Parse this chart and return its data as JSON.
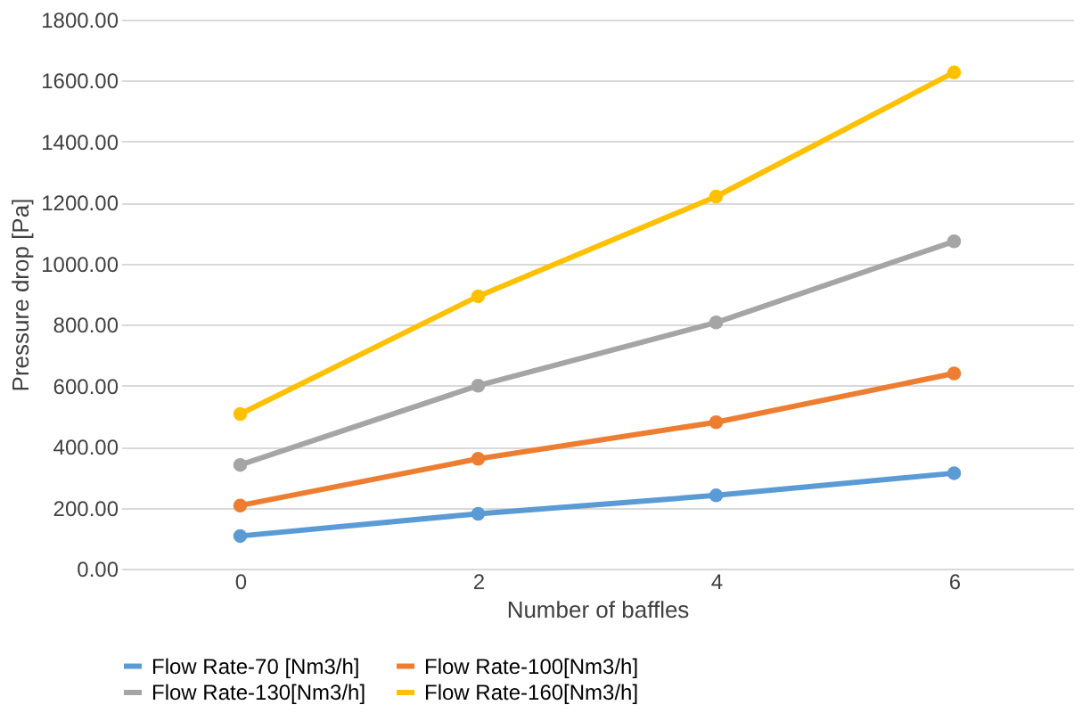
{
  "chart_data": {
    "type": "line",
    "xlabel": "Number of baffles",
    "ylabel": "Pressure drop   [Pa]",
    "categories": [
      "0",
      "2",
      "4",
      "6"
    ],
    "series": [
      {
        "name": "Flow Rate-70  [Nm3/h]",
        "color": "#5b9bd5",
        "values": [
          107,
          180,
          240,
          313
        ]
      },
      {
        "name": "Flow Rate-100[Nm3/h]",
        "color": "#ed7d31",
        "values": [
          207,
          360,
          480,
          640
        ]
      },
      {
        "name": "Flow Rate-130[Nm3/h]",
        "color": "#a5a5a5",
        "values": [
          340,
          600,
          807,
          1073
        ]
      },
      {
        "name": "Flow Rate-160[Nm3/h]",
        "color": "#ffc000",
        "values": [
          507,
          893,
          1220,
          1627
        ]
      }
    ],
    "ylim": [
      0,
      1800
    ],
    "yticks": [
      {
        "value": 0,
        "label": "0.00"
      },
      {
        "value": 200,
        "label": "200.00"
      },
      {
        "value": 400,
        "label": "400.00"
      },
      {
        "value": 600,
        "label": "600.00"
      },
      {
        "value": 800,
        "label": "800.00"
      },
      {
        "value": 1000,
        "label": "1000.00"
      },
      {
        "value": 1200,
        "label": "1200.00"
      },
      {
        "value": 1400,
        "label": "1400.00"
      },
      {
        "value": 1600,
        "label": "1600.00"
      },
      {
        "value": 1800,
        "label": "1800.00"
      }
    ],
    "grid": "y",
    "legend": "bottom",
    "marker": "circle",
    "line_style": "solid"
  }
}
